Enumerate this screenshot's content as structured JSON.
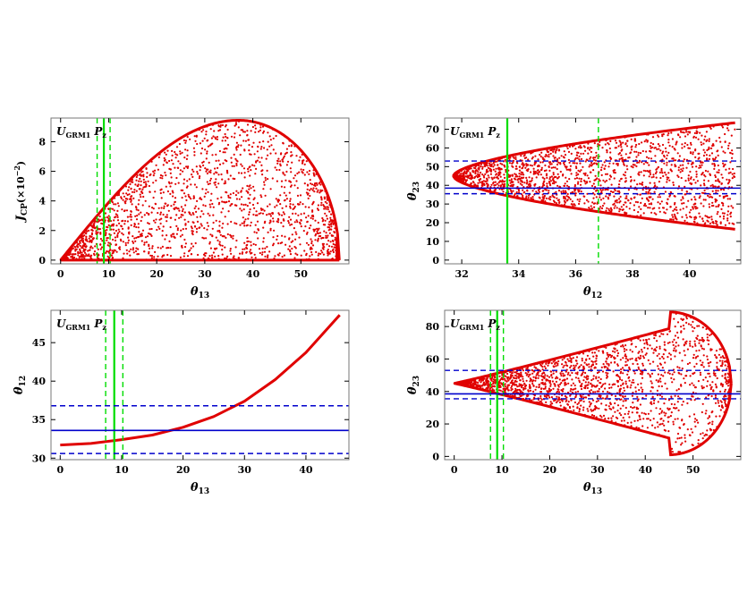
{
  "colors": {
    "scatter": "#e00000",
    "green_line": "#00dd00",
    "blue_line": "#0000cc",
    "frame": "#777777"
  },
  "chart_data": [
    {
      "id": "tl",
      "type": "scatter",
      "annotation": {
        "main": "U",
        "sub": "GRM1",
        "p": "P",
        "psub": "z"
      },
      "xlabel": {
        "main": "θ",
        "sub": "13"
      },
      "ylabel": {
        "main": "J",
        "sub": "CP",
        "suffix": "(×10",
        "exp": "−2",
        "close": ")"
      },
      "xlim": [
        -2,
        60
      ],
      "ylim": [
        -0.25,
        9.6
      ],
      "xticks": [
        0,
        10,
        20,
        30,
        40,
        50
      ],
      "yticks": [
        0,
        2,
        4,
        6,
        8
      ],
      "vlines": [
        {
          "x": 9.0,
          "color": "green",
          "style": "solid"
        },
        {
          "x": 7.6,
          "color": "green",
          "style": "dashed"
        },
        {
          "x": 10.3,
          "color": "green",
          "style": "dashed"
        }
      ],
      "hlines": [],
      "region": {
        "shape": "jcp",
        "x_range": [
          0,
          58
        ],
        "peak_x": 37,
        "peak_y": 9.45,
        "points": 1800,
        "filled_envelope": true
      }
    },
    {
      "id": "tr",
      "type": "scatter",
      "annotation": {
        "main": "U",
        "sub": "GRM1",
        "p": "P",
        "psub": "z"
      },
      "xlabel": {
        "main": "θ",
        "sub": "12"
      },
      "ylabel": {
        "main": "θ",
        "sub": "23"
      },
      "xlim": [
        31.4,
        41.8
      ],
      "ylim": [
        -2,
        76
      ],
      "xticks": [
        32,
        34,
        36,
        38,
        40
      ],
      "yticks": [
        0,
        10,
        20,
        30,
        40,
        50,
        60,
        70
      ],
      "vlines": [
        {
          "x": 33.6,
          "color": "green",
          "style": "solid"
        },
        {
          "x": 36.8,
          "color": "green",
          "style": "dashed"
        }
      ],
      "hlines": [
        {
          "y": 38.5,
          "color": "blue",
          "style": "solid"
        },
        {
          "y": 35.5,
          "color": "blue",
          "style": "dashed"
        },
        {
          "y": 53,
          "color": "blue",
          "style": "dashed"
        }
      ],
      "region": {
        "shape": "cone_x",
        "x_range": [
          31.7,
          41.6
        ],
        "center": 45,
        "end_half_width": 28.5,
        "points": 1800,
        "filled_envelope": true
      }
    },
    {
      "id": "bl",
      "type": "line",
      "annotation": {
        "main": "U",
        "sub": "GRM1",
        "p": "P",
        "psub": "z"
      },
      "xlabel": {
        "main": "θ",
        "sub": "13"
      },
      "ylabel": {
        "main": "θ",
        "sub": "12"
      },
      "xlim": [
        -1.5,
        47
      ],
      "ylim": [
        29.8,
        49.2
      ],
      "xticks": [
        0,
        10,
        20,
        30,
        40
      ],
      "yticks": [
        30,
        35,
        40,
        45
      ],
      "vlines": [
        {
          "x": 8.8,
          "color": "green",
          "style": "solid"
        },
        {
          "x": 7.4,
          "color": "green",
          "style": "dashed"
        },
        {
          "x": 10.2,
          "color": "green",
          "style": "dashed"
        }
      ],
      "hlines": [
        {
          "y": 33.6,
          "color": "blue",
          "style": "solid"
        },
        {
          "y": 30.6,
          "color": "blue",
          "style": "dashed"
        },
        {
          "y": 36.8,
          "color": "blue",
          "style": "dashed"
        }
      ],
      "series": [
        {
          "x": [
            0,
            5,
            10,
            15,
            20,
            25,
            30,
            35,
            40,
            45.5
          ],
          "y": [
            31.7,
            31.9,
            32.4,
            33.0,
            34.0,
            35.4,
            37.4,
            40.2,
            43.7,
            48.6
          ]
        }
      ]
    },
    {
      "id": "br",
      "type": "scatter",
      "annotation": {
        "main": "U",
        "sub": "GRM1",
        "p": "P",
        "psub": "z"
      },
      "xlabel": {
        "main": "θ",
        "sub": "13"
      },
      "ylabel": {
        "main": "θ",
        "sub": "23"
      },
      "xlim": [
        -2,
        60
      ],
      "ylim": [
        -2,
        90
      ],
      "xticks": [
        0,
        10,
        20,
        30,
        40,
        50
      ],
      "yticks": [
        0,
        20,
        40,
        60,
        80
      ],
      "vlines": [
        {
          "x": 9.0,
          "color": "green",
          "style": "solid"
        },
        {
          "x": 7.6,
          "color": "green",
          "style": "dashed"
        },
        {
          "x": 10.3,
          "color": "green",
          "style": "dashed"
        }
      ],
      "hlines": [
        {
          "y": 38.5,
          "color": "blue",
          "style": "solid"
        },
        {
          "y": 35.5,
          "color": "blue",
          "style": "dashed"
        },
        {
          "y": 53,
          "color": "blue",
          "style": "dashed"
        }
      ],
      "region": {
        "shape": "cone_arc",
        "x_range": [
          0,
          58
        ],
        "center": 45,
        "max_x": 58,
        "radius_y": 44,
        "points": 1800,
        "filled_envelope": true
      }
    }
  ]
}
